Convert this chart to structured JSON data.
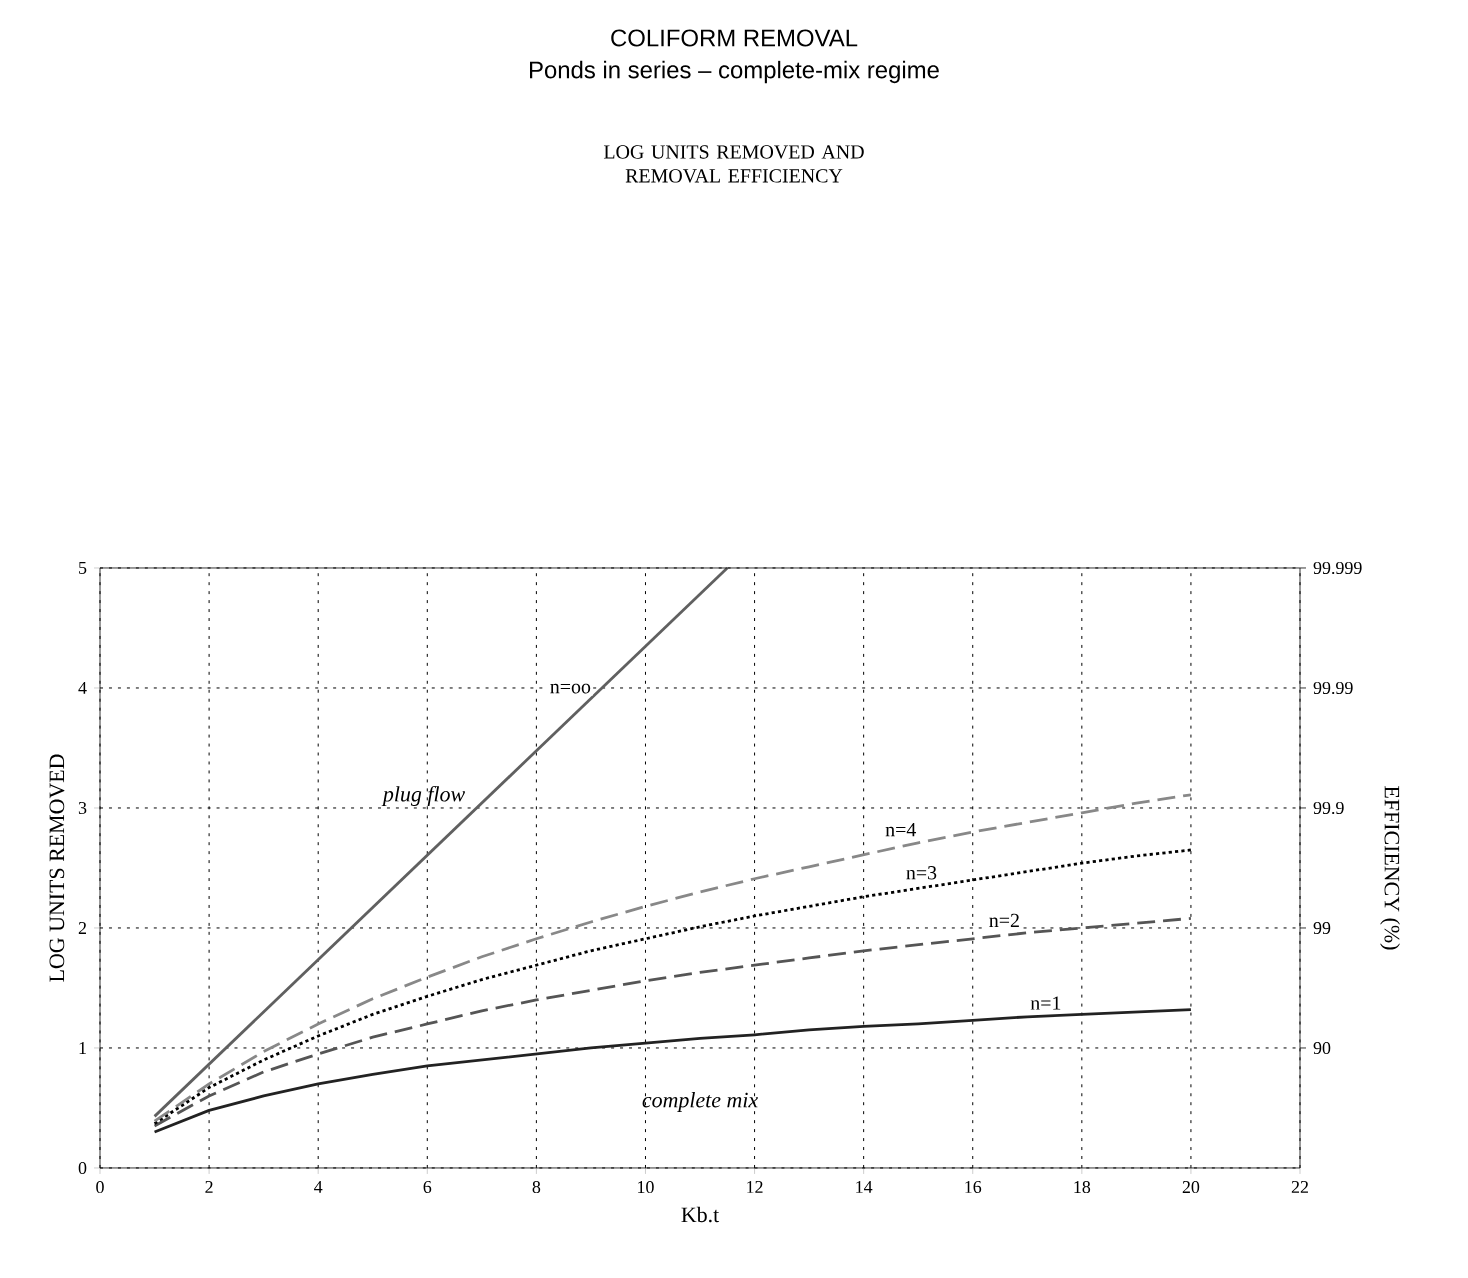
{
  "chart_data": {
    "type": "line",
    "title": "COLIFORM REMOVAL",
    "subtitle": "Ponds in series – complete-mix regime",
    "xlabel": "Kb.t",
    "ylabel": "LOG UNITS REMOVED",
    "y2label": "EFFICIENCY (%)",
    "annotations": [
      "LOG UNITS REMOVED AND REMOVAL EFFICIENCY",
      "plug flow",
      "complete mix",
      "90",
      "99",
      "99.9",
      "99.99",
      "99.999"
    ],
    "xlim": [
      0,
      22
    ],
    "xticks": [
      0,
      2,
      4,
      6,
      8,
      10,
      12,
      14,
      16,
      18,
      20,
      22
    ],
    "ylim": [
      0,
      5
    ],
    "yticks": [
      0,
      1,
      2,
      3,
      4,
      5
    ],
    "grid": true,
    "marker": "none",
    "x": [
      1,
      2,
      3,
      4,
      5,
      6,
      7,
      8,
      9,
      10,
      11,
      12,
      13,
      14,
      15,
      16,
      17,
      18,
      19,
      20
    ],
    "series": [
      {
        "name": "n=1",
        "color": "#222222",
        "line_style": "solid",
        "values": [
          0.3,
          0.48,
          0.6,
          0.7,
          0.78,
          0.85,
          0.9,
          0.95,
          1.0,
          1.04,
          1.08,
          1.11,
          1.15,
          1.18,
          1.2,
          1.23,
          1.26,
          1.28,
          1.3,
          1.32
        ]
      },
      {
        "name": "n=2",
        "color": "#555555",
        "line_style": "dashed",
        "values": [
          0.35,
          0.6,
          0.8,
          0.95,
          1.09,
          1.2,
          1.31,
          1.4,
          1.48,
          1.56,
          1.63,
          1.69,
          1.75,
          1.81,
          1.86,
          1.91,
          1.96,
          2.0,
          2.04,
          2.08
        ]
      },
      {
        "name": "n=3",
        "color": "#000000",
        "line_style": "dotted",
        "values": [
          0.37,
          0.67,
          0.9,
          1.1,
          1.28,
          1.43,
          1.57,
          1.69,
          1.81,
          1.91,
          2.01,
          2.1,
          2.18,
          2.26,
          2.33,
          2.4,
          2.47,
          2.54,
          2.6,
          2.65
        ]
      },
      {
        "name": "n=4",
        "color": "#888888",
        "line_style": "dashed",
        "values": [
          0.39,
          0.7,
          0.97,
          1.2,
          1.41,
          1.59,
          1.76,
          1.91,
          2.05,
          2.18,
          2.3,
          2.41,
          2.51,
          2.61,
          2.71,
          2.8,
          2.88,
          2.96,
          3.04,
          3.11
        ]
      },
      {
        "name": "n=oo",
        "color": "#606060",
        "line_style": "solid",
        "x": [
          1,
          11.5
        ],
        "values": [
          0.43,
          5.0
        ]
      }
    ]
  }
}
